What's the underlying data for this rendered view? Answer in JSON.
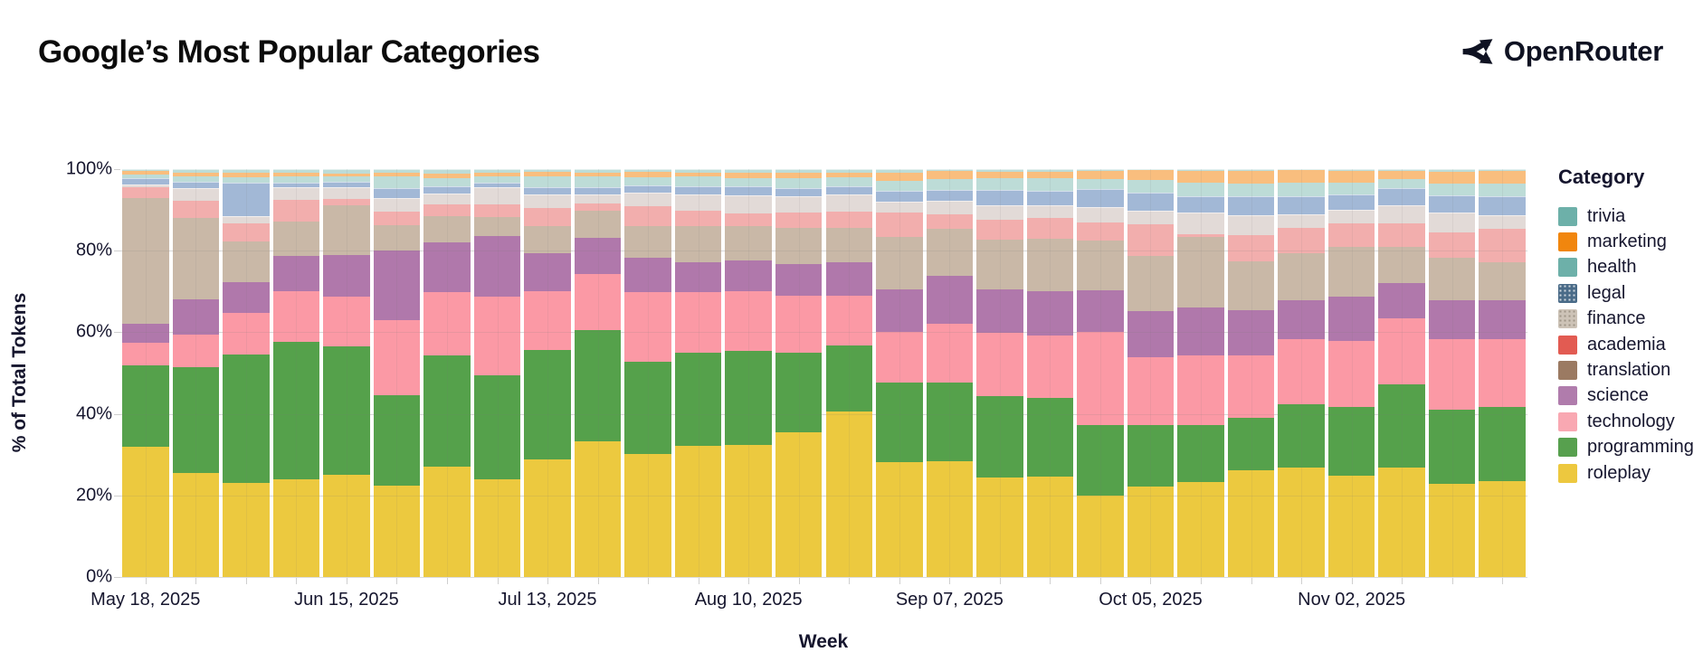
{
  "header": {
    "title": "Google’s Most Popular Categories",
    "brand": "OpenRouter"
  },
  "chart_data": {
    "type": "bar",
    "subtype": "stacked-percent-weekly",
    "title": "Google’s Most Popular Categories",
    "xlabel": "Week",
    "ylabel": "% of Total Tokens",
    "ylim": [
      0,
      100
    ],
    "grid": true,
    "legend_position": "right",
    "legend_title": "Category",
    "ytick_labels": [
      "0%",
      "20%",
      "40%",
      "60%",
      "80%",
      "100%"
    ],
    "xtick_label_every": 4,
    "xtick_labels_shown": [
      "May 18, 2025",
      "Jun 15, 2025",
      "Jul 13, 2025",
      "Aug 10, 2025",
      "Sep 07, 2025",
      "Oct 05, 2025",
      "Nov 02, 2025"
    ],
    "categories": [
      "May 18, 2025",
      "May 25, 2025",
      "Jun 01, 2025",
      "Jun 08, 2025",
      "Jun 15, 2025",
      "Jun 22, 2025",
      "Jun 29, 2025",
      "Jul 06, 2025",
      "Jul 13, 2025",
      "Jul 20, 2025",
      "Jul 27, 2025",
      "Aug 03, 2025",
      "Aug 10, 2025",
      "Aug 17, 2025",
      "Aug 24, 2025",
      "Aug 31, 2025",
      "Sep 07, 2025",
      "Sep 14, 2025",
      "Sep 21, 2025",
      "Sep 28, 2025",
      "Oct 05, 2025",
      "Oct 12, 2025",
      "Oct 19, 2025",
      "Oct 26, 2025",
      "Nov 02, 2025",
      "Nov 09, 2025",
      "Nov 16, 2025",
      "Nov 23, 2025"
    ],
    "stack_order": "bottom-to-top",
    "series": [
      {
        "name": "roleplay",
        "bar_color": "#ecc93f",
        "legend_color": "#edc83f",
        "pattern": "none",
        "values": [
          32,
          25.5,
          23,
          24,
          25.1,
          22.3,
          27.1,
          23.9,
          28.8,
          33.3,
          30.2,
          32.2,
          32.4,
          35.4,
          40.5,
          28.1,
          28.4,
          24.4,
          24.6,
          20,
          22.2,
          23.3,
          26.2,
          26.8,
          24.8,
          26.9,
          22.8,
          23.5
        ]
      },
      {
        "name": "programming",
        "bar_color": "#55a14b",
        "legend_color": "#57a04e",
        "pattern": "none",
        "values": [
          20,
          26,
          31.5,
          33.6,
          31.4,
          22.2,
          27.3,
          25.5,
          26.9,
          27.2,
          22.6,
          22.8,
          23,
          19.5,
          16.3,
          19.6,
          19.2,
          19.9,
          19.3,
          17.3,
          15.1,
          14,
          12.8,
          15.6,
          16.9,
          20.3,
          18.2,
          18.2
        ]
      },
      {
        "name": "technology",
        "bar_color": "#fb99a5",
        "legend_color": "#f9a8b2",
        "pattern": "none",
        "values": [
          5.5,
          8,
          10.3,
          12.5,
          12.2,
          18.5,
          15.5,
          19.3,
          14.4,
          13.8,
          17,
          14.8,
          14.7,
          14,
          12.2,
          12.5,
          14.5,
          15.6,
          15.4,
          22.7,
          16.5,
          17,
          15.3,
          15.9,
          16.2,
          16.2,
          17.3,
          16.6
        ]
      },
      {
        "name": "science",
        "bar_color": "#b078ab",
        "legend_color": "#b07cac",
        "pattern": "none",
        "values": [
          4.5,
          8.5,
          7.4,
          8.6,
          10.3,
          17,
          12.2,
          14.8,
          9.3,
          8.8,
          8.5,
          7.4,
          7.5,
          7.8,
          8.1,
          10.4,
          11.7,
          10.6,
          10.7,
          10.4,
          11.5,
          11.8,
          11.2,
          9.6,
          10.8,
          8.7,
          9.6,
          9.6
        ]
      },
      {
        "name": "translation",
        "bar_color": "#c9b8a7",
        "legend_color": "#9b7a62",
        "pattern": "none",
        "values": [
          31,
          20,
          10,
          8.5,
          12.2,
          6.3,
          6.3,
          4.8,
          6.6,
          6.7,
          7.8,
          8.9,
          8.5,
          8.9,
          8.4,
          12.8,
          11.5,
          12.2,
          12.9,
          12.2,
          13.5,
          17.2,
          11.8,
          11.6,
          12.2,
          8.8,
          10.4,
          9.3
        ]
      },
      {
        "name": "academia",
        "bar_color": "#f2aead",
        "legend_color": "#e25b52",
        "pattern": "none",
        "values": [
          2.5,
          4.3,
          4.4,
          5.2,
          1.5,
          3.2,
          3,
          3,
          4.5,
          1.8,
          4.8,
          3.7,
          3,
          3.7,
          4.1,
          6,
          3.7,
          4.8,
          5.2,
          4.4,
          7.7,
          0.8,
          6.6,
          6.2,
          5.9,
          5.9,
          6.3,
          8.1
        ]
      },
      {
        "name": "finance",
        "bar_color": "#e2dad7",
        "legend_color": "#cdc3b7",
        "pattern": "dots-finance",
        "values": [
          0.7,
          3,
          1.8,
          3.2,
          2.8,
          3.5,
          2.7,
          4.3,
          3.3,
          2.2,
          3.3,
          4.1,
          4.4,
          4,
          4.3,
          2.7,
          3.3,
          3.7,
          3,
          3.7,
          3.3,
          5.2,
          4.8,
          3.2,
          3.3,
          4.4,
          4.8,
          3.3
        ]
      },
      {
        "name": "legal",
        "bar_color": "#a2b8d6",
        "legend_color": "#4a6b88",
        "pattern": "dots-legal",
        "values": [
          1.5,
          1.6,
          8.3,
          1,
          1.5,
          2.4,
          1.6,
          1,
          1.8,
          1.8,
          1.8,
          1.8,
          2.2,
          2.1,
          2,
          2.6,
          2.6,
          3.7,
          3.7,
          4.4,
          4.4,
          4.1,
          4.7,
          4.4,
          3.7,
          4.1,
          4.1,
          4.8
        ]
      },
      {
        "name": "health",
        "bar_color": "#bddcd7",
        "legend_color": "#6db0a9",
        "pattern": "none",
        "values": [
          1.1,
          1.3,
          1.3,
          1.6,
          1.2,
          2.8,
          2.2,
          1.6,
          2.6,
          2.6,
          2.1,
          2.5,
          2.1,
          2.3,
          2.1,
          2.5,
          2.6,
          2.9,
          2.9,
          2.5,
          3.2,
          3.2,
          3,
          3.4,
          3,
          2.2,
          3,
          3
        ]
      },
      {
        "name": "marketing",
        "bar_color": "#f9be7e",
        "legend_color": "#f1860e",
        "pattern": "none",
        "values": [
          0.7,
          0.9,
          1.1,
          1,
          0.8,
          1,
          1.1,
          1,
          1.1,
          1,
          1.2,
          1,
          1.4,
          1.5,
          1.2,
          1.9,
          2,
          1.5,
          1.6,
          2,
          2.3,
          2.9,
          3.2,
          3,
          2.8,
          2,
          2.8,
          3.1
        ]
      },
      {
        "name": "trivia",
        "bar_color": "#bddcd7",
        "legend_color": "#6db0a9",
        "pattern": "dots-trivia",
        "values": [
          0.5,
          0.9,
          0.9,
          0.8,
          1,
          0.8,
          1,
          0.8,
          0.7,
          0.8,
          0.7,
          0.8,
          0.8,
          0.8,
          0.8,
          0.9,
          0.5,
          0.7,
          0.7,
          0.4,
          0.3,
          0.5,
          0.4,
          0.3,
          0.4,
          0.5,
          0.7,
          0.5
        ]
      }
    ]
  }
}
